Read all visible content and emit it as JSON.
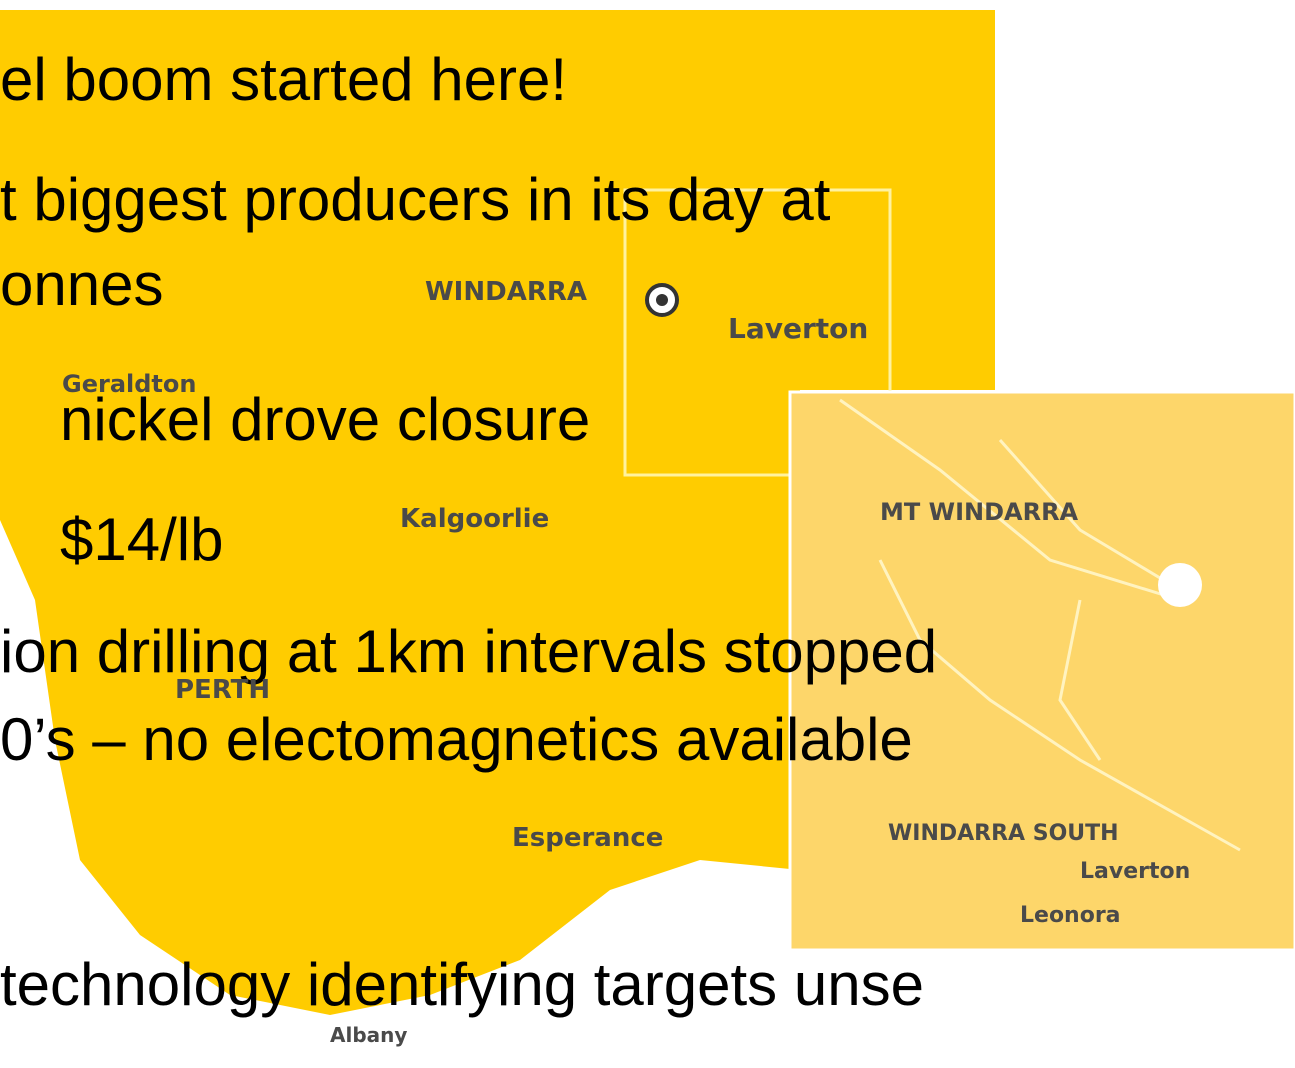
{
  "bullets": [
    "el boom started here!",
    "t biggest producers in its day at",
    "onnes",
    "nickel drove closure",
    "$14/lb",
    "ion drilling at 1km intervals stopped",
    "0’s – no electomagnetics available",
    "technology identifying targets unse"
  ],
  "map": {
    "labels": [
      "WINDARRA",
      "Laverton",
      "Geraldton",
      "Kalgoorlie",
      "PERTH",
      "Esperance",
      "Albany"
    ],
    "inset": [
      "MT WINDARRA",
      "WINDARRA SOUTH",
      "Laverton",
      "Leonora"
    ]
  }
}
